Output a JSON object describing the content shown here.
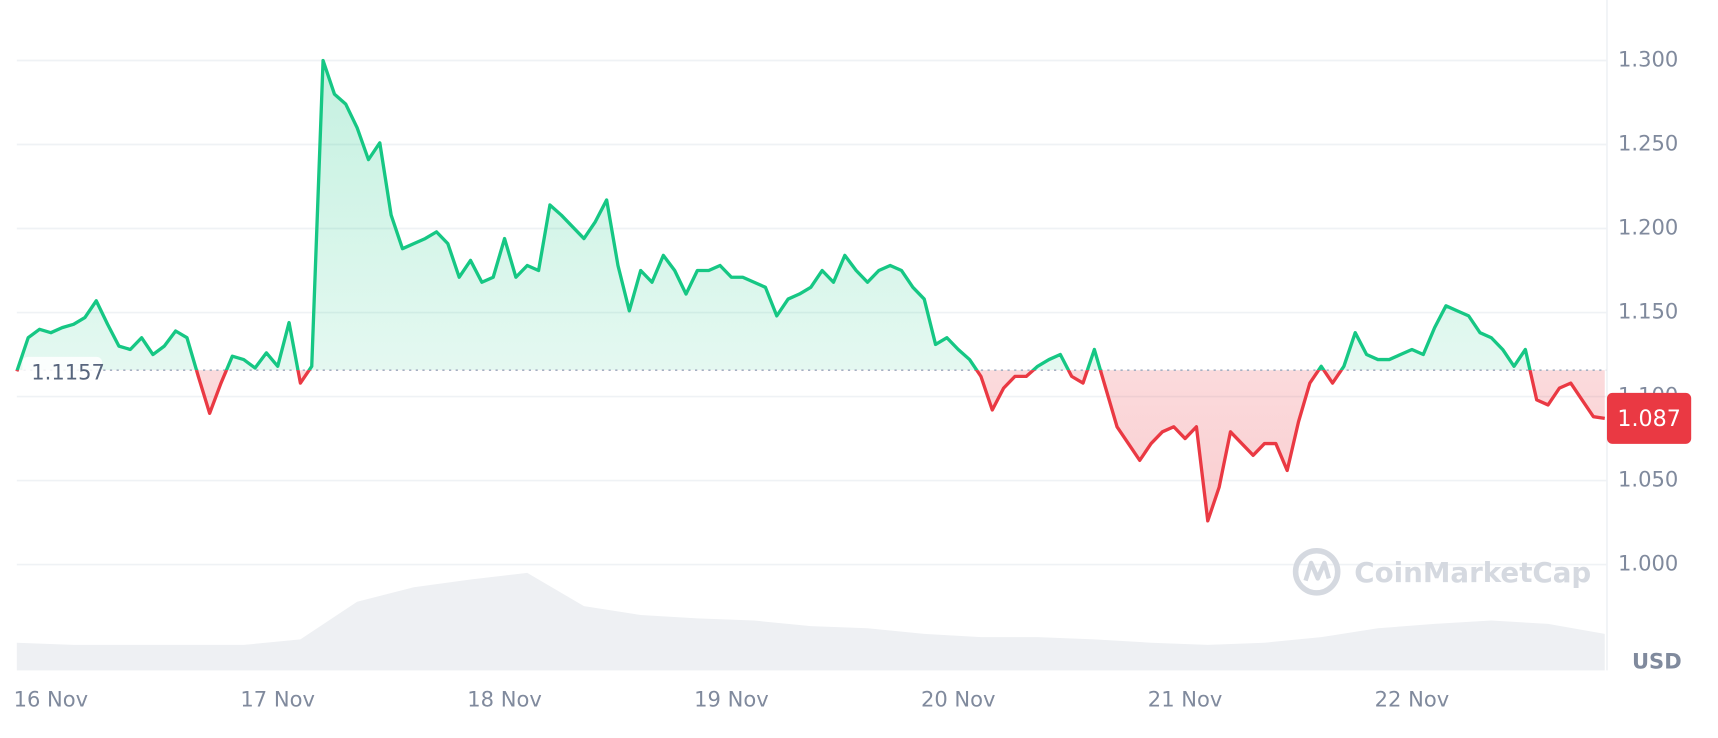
{
  "chart_data": {
    "type": "line",
    "series": [
      {
        "color_up": "#16c784",
        "color_down": "#ea3943",
        "values": [
          1.115,
          1.135,
          1.14,
          1.138,
          1.141,
          1.143,
          1.147,
          1.157,
          1.143,
          1.13,
          1.128,
          1.135,
          1.125,
          1.13,
          1.139,
          1.135,
          1.112,
          1.09,
          1.108,
          1.124,
          1.122,
          1.117,
          1.126,
          1.118,
          1.144,
          1.108,
          1.118,
          1.3,
          1.28,
          1.274,
          1.26,
          1.241,
          1.251,
          1.208,
          1.188,
          1.191,
          1.194,
          1.198,
          1.191,
          1.171,
          1.181,
          1.168,
          1.171,
          1.194,
          1.171,
          1.178,
          1.175,
          1.214,
          1.208,
          1.201,
          1.194,
          1.204,
          1.217,
          1.178,
          1.151,
          1.175,
          1.168,
          1.184,
          1.175,
          1.161,
          1.175,
          1.175,
          1.178,
          1.171,
          1.171,
          1.168,
          1.165,
          1.148,
          1.158,
          1.161,
          1.165,
          1.175,
          1.168,
          1.184,
          1.175,
          1.168,
          1.175,
          1.178,
          1.175,
          1.165,
          1.158,
          1.131,
          1.135,
          1.128,
          1.122,
          1.112,
          1.092,
          1.105,
          1.112,
          1.112,
          1.118,
          1.122,
          1.125,
          1.112,
          1.108,
          1.128,
          1.105,
          1.082,
          1.072,
          1.062,
          1.072,
          1.079,
          1.082,
          1.075,
          1.082,
          1.026,
          1.046,
          1.079,
          1.072,
          1.065,
          1.072,
          1.072,
          1.056,
          1.085,
          1.108,
          1.118,
          1.108,
          1.118,
          1.138,
          1.125,
          1.122,
          1.122,
          1.125,
          1.128,
          1.125,
          1.141,
          1.154,
          1.151,
          1.148,
          1.138,
          1.135,
          1.128,
          1.118,
          1.128,
          1.098,
          1.095,
          1.105,
          1.108,
          1.098,
          1.088,
          1.087
        ]
      }
    ],
    "baseline": 1.1157,
    "current": 1.087,
    "volume": {
      "color": "#eef0f3",
      "values": [
        25,
        23,
        23,
        23,
        23,
        28,
        62,
        75,
        82,
        88,
        58,
        50,
        47,
        45,
        40,
        38,
        33,
        30,
        30,
        28,
        25,
        23,
        25,
        30,
        38,
        42,
        45,
        42,
        33
      ]
    },
    "y2lim": [
      0,
      100
    ],
    "ylim": [
      0.937,
      1.336
    ],
    "yticks": [
      {
        "value": 1.0,
        "label": "1.000"
      },
      {
        "value": 1.05,
        "label": "1.050"
      },
      {
        "value": 1.1,
        "label": "1.100"
      },
      {
        "value": 1.15,
        "label": "1.150"
      },
      {
        "value": 1.2,
        "label": "1.200"
      },
      {
        "value": 1.25,
        "label": "1.250"
      },
      {
        "value": 1.3,
        "label": "1.300"
      }
    ],
    "xticks": [
      {
        "value": 3,
        "label": "16 Nov"
      },
      {
        "value": 23,
        "label": "17 Nov"
      },
      {
        "value": 43,
        "label": "18 Nov"
      },
      {
        "value": 63,
        "label": "19 Nov"
      },
      {
        "value": 83,
        "label": "20 Nov"
      },
      {
        "value": 103,
        "label": "21 Nov"
      },
      {
        "value": 123,
        "label": "22 Nov"
      }
    ],
    "currency_label": "USD",
    "watermark": "CoinMarketCap",
    "grid": true
  }
}
